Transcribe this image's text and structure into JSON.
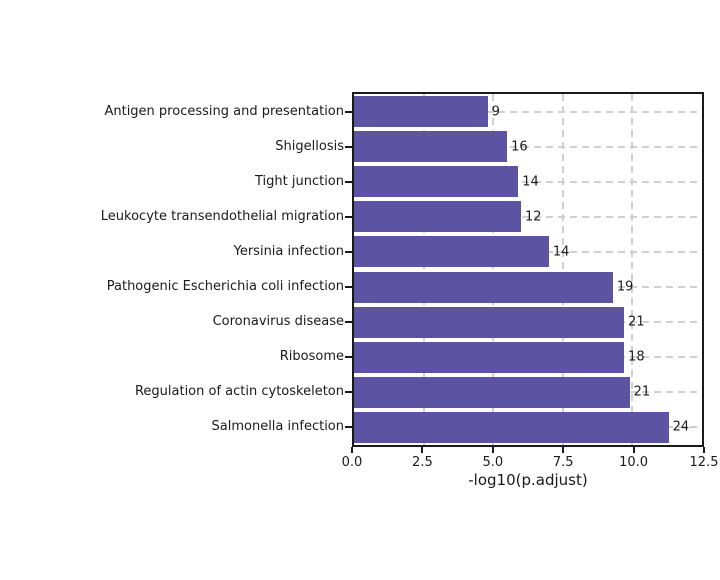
{
  "chart_data": {
    "type": "bar",
    "orientation": "horizontal",
    "title": "",
    "xlabel": "-log10(p.adjust)",
    "ylabel": "",
    "xlim": [
      0,
      12.5
    ],
    "xticks": [
      "0.0",
      "2.5",
      "5.0",
      "7.5",
      "10.0",
      "12.5"
    ],
    "grid": "dashed",
    "legend": "none",
    "categories": [
      "Antigen processing and presentation",
      "Shigellosis",
      "Tight junction",
      "Leukocyte transendothelial migration",
      "Yersinia infection",
      "Pathogenic Escherichia coli infection",
      "Coronavirus disease",
      "Ribosome",
      "Regulation of actin cytoskeleton",
      "Salmonella infection"
    ],
    "values": [
      4.8,
      5.5,
      5.9,
      6.0,
      7.0,
      9.3,
      9.7,
      9.7,
      9.9,
      11.3
    ],
    "bar_count_labels": [
      "9",
      "16",
      "14",
      "12",
      "14",
      "19",
      "21",
      "18",
      "21",
      "24"
    ]
  },
  "colors": {
    "bar": "#5d53a3",
    "grid": "#d0d0d0",
    "frame": "#1a1a1a",
    "text": "#1a1a1a",
    "background": "#ffffff"
  }
}
